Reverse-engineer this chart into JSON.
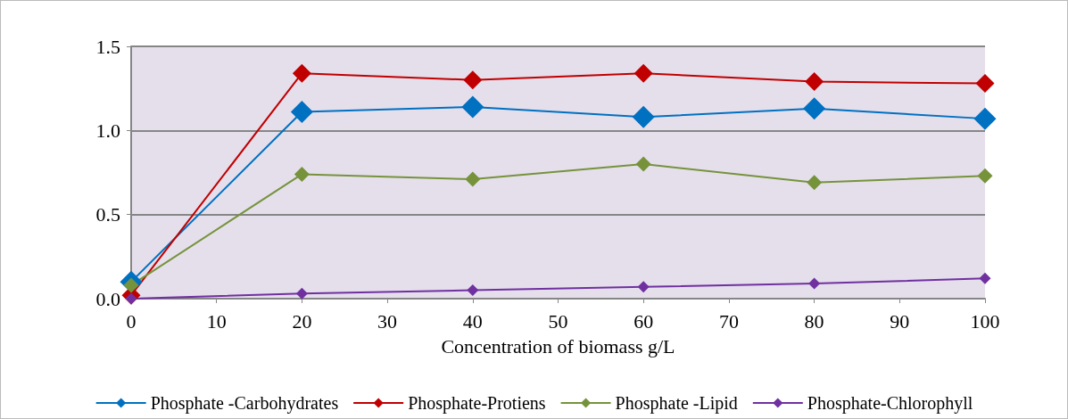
{
  "chart_data": {
    "type": "line",
    "xlabel": "Concentration of biomass g/L",
    "x": [
      0,
      20,
      40,
      60,
      80,
      100
    ],
    "series": [
      {
        "name": "Phosphate -Carbohydrates",
        "color": "#0070c0",
        "values": [
          0.1,
          1.11,
          1.14,
          1.08,
          1.13,
          1.07
        ]
      },
      {
        "name": "Phosphate-Protiens",
        "color": "#c00000",
        "values": [
          0.02,
          1.34,
          1.3,
          1.34,
          1.29,
          1.28
        ]
      },
      {
        "name": "Phosphate -Lipid",
        "color": "#76933c",
        "values": [
          0.08,
          0.74,
          0.71,
          0.8,
          0.69,
          0.73
        ]
      },
      {
        "name": "Phosphate-Chlorophyll",
        "color": "#7030a0",
        "values": [
          0,
          0.03,
          0.05,
          0.07,
          0.09,
          0.12
        ]
      }
    ],
    "xlim": [
      0,
      100
    ],
    "xticks": [
      0,
      10,
      20,
      30,
      40,
      50,
      60,
      70,
      80,
      90,
      100
    ],
    "ylim": [
      0,
      1.5
    ],
    "yticks": [
      {
        "value": 0,
        "label": "0.0"
      },
      {
        "value": 0.5,
        "label": "0.5"
      },
      {
        "value": 1,
        "label": "1.0"
      },
      {
        "value": 1.5,
        "label": "1.5"
      }
    ],
    "grid": "y",
    "legend": "bottom",
    "marker": "diamond",
    "line_style": "solid"
  }
}
